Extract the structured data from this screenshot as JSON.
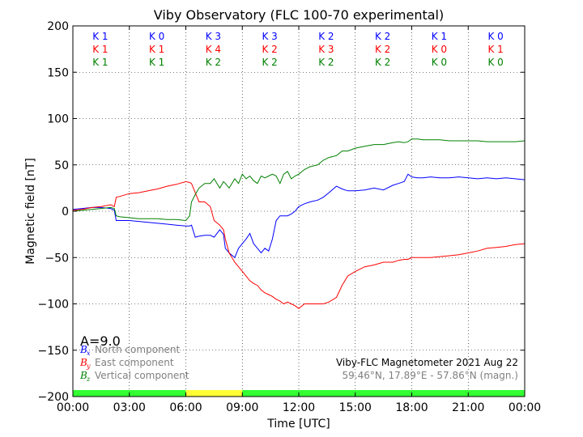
{
  "chart_data": {
    "type": "line",
    "title": "Viby Observatory (FLC 100-70 experimental)",
    "xlabel": "Time [UTC]",
    "ylabel": "Magnetic field [nT]",
    "xlim": [
      0,
      24
    ],
    "ylim": [
      -200,
      200
    ],
    "grid": true,
    "x_ticks": [
      0,
      3,
      6,
      9,
      12,
      15,
      18,
      21,
      24
    ],
    "x_tick_labels": [
      "00:00",
      "03:00",
      "06:00",
      "09:00",
      "12:00",
      "15:00",
      "18:00",
      "21:00",
      "00:00"
    ],
    "y_ticks": [
      200,
      150,
      100,
      50,
      0,
      -50,
      -100,
      -150,
      -200
    ],
    "y_tick_labels": [
      "200",
      "150",
      "100",
      "50",
      "0",
      "−50",
      "−100",
      "−150",
      "−200"
    ],
    "k_index_rows": [
      {
        "color": "#0000ff",
        "labels": [
          "K 1",
          "K 0",
          "K 3",
          "K 3",
          "K 2",
          "K 2",
          "K 1",
          "K 0"
        ]
      },
      {
        "color": "#ff0000",
        "labels": [
          "K 1",
          "K 1",
          "K 4",
          "K 2",
          "K 3",
          "K 2",
          "K 0",
          "K 1"
        ]
      },
      {
        "color": "#008000",
        "labels": [
          "K 1",
          "K 1",
          "K 2",
          "K 2",
          "K 2",
          "K 2",
          "K 0",
          "K 0"
        ]
      }
    ],
    "activity_bar": [
      {
        "start": 0,
        "end": 6,
        "color": "#33ff33"
      },
      {
        "start": 6,
        "end": 9,
        "color": "#ffff33"
      },
      {
        "start": 9,
        "end": 24,
        "color": "#33ff33"
      }
    ],
    "series": [
      {
        "name": "North component",
        "symbol": "B",
        "subscript": "x",
        "color": "#0000ff",
        "x": [
          0,
          0.5,
          1,
          1.5,
          2,
          2.2,
          2.3,
          2.5,
          3,
          3.5,
          4,
          4.5,
          5,
          5.5,
          6,
          6.2,
          6.3,
          6.5,
          6.7,
          7,
          7.3,
          7.5,
          7.8,
          8,
          8.1,
          8.3,
          8.6,
          8.8,
          9,
          9.2,
          9.4,
          9.6,
          9.8,
          10,
          10.2,
          10.4,
          10.6,
          10.8,
          11,
          11.2,
          11.4,
          11.6,
          11.8,
          12,
          12.3,
          12.6,
          13,
          13.3,
          13.6,
          14,
          14.3,
          14.6,
          15,
          15.5,
          16,
          16.5,
          17,
          17.3,
          17.6,
          17.8,
          18,
          18.3,
          18.6,
          19,
          19.5,
          20,
          20.5,
          21,
          21.5,
          22,
          22.5,
          23,
          23.5,
          24
        ],
        "y": [
          2,
          3,
          4,
          4,
          3,
          1,
          -10,
          -10,
          -10,
          -11,
          -12,
          -13,
          -14,
          -15,
          -16,
          -16,
          -15,
          -28,
          -27,
          -26,
          -26,
          -28,
          -20,
          -25,
          -40,
          -45,
          -50,
          -40,
          -35,
          -30,
          -24,
          -35,
          -40,
          -45,
          -40,
          -43,
          -30,
          -10,
          -5,
          -5,
          -5,
          -3,
          0,
          5,
          8,
          10,
          12,
          15,
          20,
          27,
          24,
          22,
          22,
          23,
          25,
          23,
          28,
          30,
          32,
          40,
          37,
          36,
          36,
          37,
          36,
          36,
          37,
          36,
          35,
          36,
          35,
          36,
          35,
          34
        ]
      },
      {
        "name": "East component",
        "symbol": "B",
        "subscript": "y",
        "color": "#ff0000",
        "x": [
          0,
          0.5,
          1,
          1.5,
          2,
          2.2,
          2.3,
          2.5,
          3,
          3.5,
          4,
          4.5,
          5,
          5.5,
          6,
          6.2,
          6.3,
          6.5,
          6.7,
          7,
          7.3,
          7.5,
          7.8,
          8,
          8.1,
          8.3,
          8.6,
          8.8,
          9,
          9.2,
          9.4,
          9.6,
          9.8,
          10,
          10.2,
          10.4,
          10.6,
          10.8,
          11,
          11.2,
          11.4,
          11.6,
          11.8,
          12,
          12.3,
          12.6,
          13,
          13.3,
          13.6,
          14,
          14.3,
          14.6,
          15,
          15.5,
          16,
          16.5,
          17,
          17.3,
          17.6,
          17.8,
          18,
          18.3,
          18.6,
          19,
          19.5,
          20,
          20.5,
          21,
          21.5,
          22,
          22.5,
          23,
          23.5,
          24
        ],
        "y": [
          1,
          2,
          4,
          5,
          7,
          5,
          15,
          16,
          19,
          20,
          22,
          24,
          27,
          29,
          32,
          31,
          30,
          20,
          10,
          10,
          5,
          -10,
          -15,
          -20,
          -30,
          -45,
          -55,
          -60,
          -65,
          -70,
          -75,
          -78,
          -80,
          -85,
          -88,
          -90,
          -92,
          -95,
          -97,
          -100,
          -98,
          -100,
          -102,
          -105,
          -100,
          -100,
          -100,
          -100,
          -98,
          -93,
          -80,
          -70,
          -65,
          -60,
          -58,
          -55,
          -55,
          -53,
          -52,
          -52,
          -50,
          -50,
          -50,
          -50,
          -49,
          -48,
          -47,
          -45,
          -43,
          -40,
          -39,
          -38,
          -36,
          -35
        ]
      },
      {
        "name": "Vertical component",
        "symbol": "B",
        "subscript": "z",
        "color": "#008000",
        "x": [
          0,
          0.5,
          1,
          1.5,
          2,
          2.2,
          2.3,
          2.5,
          3,
          3.5,
          4,
          4.5,
          5,
          5.5,
          6,
          6.2,
          6.3,
          6.5,
          6.7,
          7,
          7.3,
          7.5,
          7.8,
          8,
          8.1,
          8.3,
          8.6,
          8.8,
          9,
          9.2,
          9.4,
          9.6,
          9.8,
          10,
          10.2,
          10.4,
          10.6,
          10.8,
          11,
          11.2,
          11.4,
          11.6,
          11.8,
          12,
          12.3,
          12.6,
          13,
          13.3,
          13.6,
          14,
          14.3,
          14.6,
          15,
          15.5,
          16,
          16.5,
          17,
          17.3,
          17.6,
          17.8,
          18,
          18.3,
          18.6,
          19,
          19.5,
          20,
          20.5,
          21,
          21.5,
          22,
          22.5,
          23,
          23.5,
          24
        ],
        "y": [
          0,
          1,
          2,
          3,
          4,
          3,
          -5,
          -6,
          -7,
          -8,
          -8,
          -8,
          -9,
          -9,
          -10,
          -5,
          10,
          18,
          25,
          30,
          30,
          35,
          25,
          32,
          30,
          25,
          35,
          30,
          40,
          35,
          38,
          33,
          30,
          38,
          36,
          38,
          40,
          38,
          30,
          40,
          43,
          35,
          38,
          40,
          45,
          48,
          50,
          55,
          58,
          60,
          65,
          65,
          68,
          70,
          72,
          72,
          74,
          75,
          74,
          75,
          78,
          78,
          77,
          77,
          77,
          76,
          76,
          76,
          76,
          75,
          75,
          75,
          75,
          76
        ]
      }
    ],
    "activity_index": "A=9.0",
    "footer_line1": "Viby-FLC Magnetometer 2021 Aug 22",
    "footer_line2": "59.46°N, 17.89°E - 57.86°N (magn.)"
  }
}
